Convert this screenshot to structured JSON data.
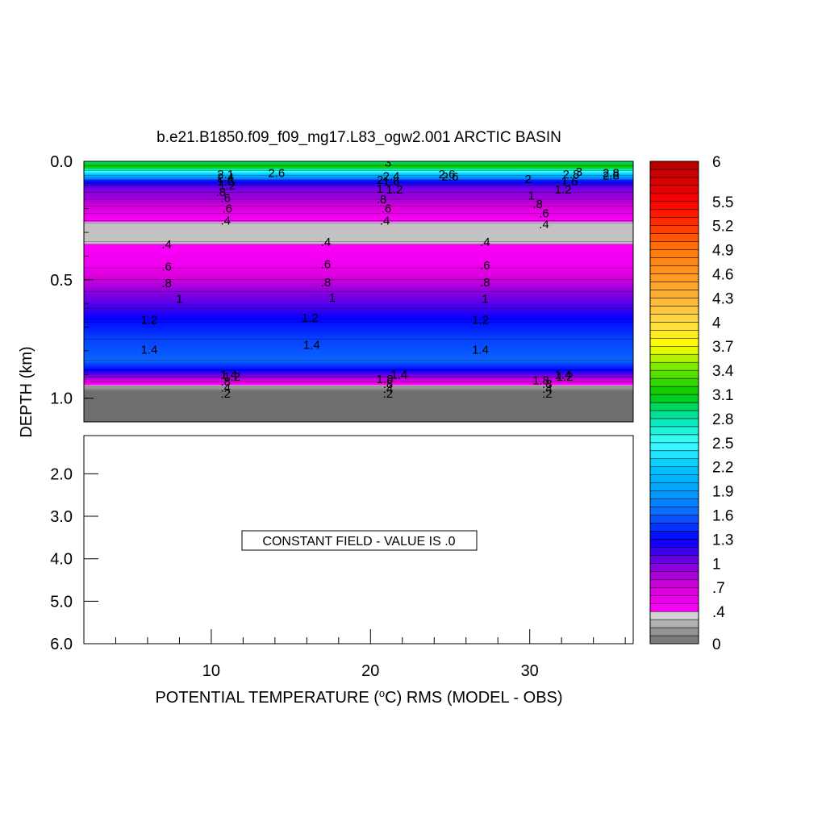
{
  "chart_data": {
    "type": "heatmap",
    "title": "b.e21.B1850.f09_f09_mg17.L83_ogw2.001 ARCTIC BASIN",
    "xlabel": "POTENTIAL TEMPERATURE (",
    "xlabel_deg": "o",
    "xlabel_tail": "C) RMS (MODEL - OBS)",
    "ylabel": "DEPTH (km)",
    "x_range": [
      2,
      36.5
    ],
    "x_ticks": [
      "10",
      "20",
      "30"
    ],
    "x_tick_values": [
      10,
      20,
      30
    ],
    "upper_panel": {
      "depth_range": [
        0,
        1.1
      ],
      "y_ticks": [
        "0.0",
        "0.5",
        "1.0"
      ],
      "y_tick_values": [
        0,
        0.5,
        1.0
      ],
      "depth_profile": [
        {
          "depth": 0.0,
          "value": 2.9
        },
        {
          "depth": 0.02,
          "value": 3.2
        },
        {
          "depth": 0.04,
          "value": 2.5
        },
        {
          "depth": 0.06,
          "value": 2.0
        },
        {
          "depth": 0.08,
          "value": 1.4
        },
        {
          "depth": 0.1,
          "value": 1.1
        },
        {
          "depth": 0.13,
          "value": 0.95
        },
        {
          "depth": 0.16,
          "value": 0.85
        },
        {
          "depth": 0.19,
          "value": 0.7
        },
        {
          "depth": 0.22,
          "value": 0.55
        },
        {
          "depth": 0.25,
          "value": 0.42
        },
        {
          "depth": 0.26,
          "value": 0.3
        },
        {
          "depth": 0.34,
          "value": 0.3
        },
        {
          "depth": 0.35,
          "value": 0.42
        },
        {
          "depth": 0.45,
          "value": 0.55
        },
        {
          "depth": 0.5,
          "value": 0.75
        },
        {
          "depth": 0.55,
          "value": 0.95
        },
        {
          "depth": 0.62,
          "value": 1.15
        },
        {
          "depth": 0.68,
          "value": 1.35
        },
        {
          "depth": 0.75,
          "value": 1.5
        },
        {
          "depth": 0.84,
          "value": 1.6
        },
        {
          "depth": 0.88,
          "value": 1.3
        },
        {
          "depth": 0.91,
          "value": 0.9
        },
        {
          "depth": 0.93,
          "value": 0.6
        },
        {
          "depth": 0.95,
          "value": 0.2
        },
        {
          "depth": 0.97,
          "value": 0.0
        },
        {
          "depth": 1.1,
          "value": 0.0
        }
      ],
      "contour_labels": [
        {
          "text": "2.6",
          "x": 14.1,
          "depth": 0.05
        },
        {
          "text": "3",
          "x": 21.1,
          "depth": 0.005
        },
        {
          "text": "2.6",
          "x": 24.8,
          "depth": 0.055
        },
        {
          "text": "2.6",
          "x": 25.0,
          "depth": 0.065
        },
        {
          "text": "2.8",
          "x": 35.1,
          "depth": 0.05
        },
        {
          "text": "2.8",
          "x": 35.1,
          "depth": 0.06
        },
        {
          "text": "2",
          "x": 29.9,
          "depth": 0.075
        },
        {
          "text": "3",
          "x": 33.1,
          "depth": 0.045
        },
        {
          "text": "2.8",
          "x": 32.6,
          "depth": 0.055
        },
        {
          "text": "1.6",
          "x": 32.5,
          "depth": 0.085
        },
        {
          "text": "2.1",
          "x": 10.9,
          "depth": 0.055
        },
        {
          "text": "2.4",
          "x": 10.9,
          "depth": 0.068
        },
        {
          "text": "1.6",
          "x": 10.9,
          "depth": 0.085
        },
        {
          "text": "1.2",
          "x": 11.0,
          "depth": 0.103
        },
        {
          "text": "2",
          "x": 20.6,
          "depth": 0.078
        },
        {
          "text": "2.4",
          "x": 21.3,
          "depth": 0.063
        },
        {
          "text": "1.6",
          "x": 21.3,
          "depth": 0.085
        },
        {
          "text": "1.2",
          "x": 21.5,
          "depth": 0.12
        },
        {
          "text": "1.2",
          "x": 32.1,
          "depth": 0.12
        },
        {
          "text": ".8",
          "x": 10.6,
          "depth": 0.13
        },
        {
          "text": ".6",
          "x": 10.9,
          "depth": 0.155
        },
        {
          "text": ".6",
          "x": 11.0,
          "depth": 0.2
        },
        {
          "text": ".4",
          "x": 10.9,
          "depth": 0.25
        },
        {
          "text": "1",
          "x": 20.6,
          "depth": 0.115
        },
        {
          "text": ".8",
          "x": 20.7,
          "depth": 0.16
        },
        {
          "text": ".6",
          "x": 21.0,
          "depth": 0.2
        },
        {
          "text": ".4",
          "x": 20.9,
          "depth": 0.25
        },
        {
          "text": "1",
          "x": 30.1,
          "depth": 0.145
        },
        {
          "text": ".8",
          "x": 30.5,
          "depth": 0.18
        },
        {
          "text": ".6",
          "x": 30.9,
          "depth": 0.22
        },
        {
          "text": ".4",
          "x": 30.9,
          "depth": 0.265
        },
        {
          "text": ".4",
          "x": 7.2,
          "depth": 0.35
        },
        {
          "text": ".4",
          "x": 17.2,
          "depth": 0.34
        },
        {
          "text": ".4",
          "x": 27.2,
          "depth": 0.34
        },
        {
          "text": ".6",
          "x": 7.2,
          "depth": 0.445
        },
        {
          "text": ".6",
          "x": 17.2,
          "depth": 0.435
        },
        {
          "text": ".6",
          "x": 27.2,
          "depth": 0.44
        },
        {
          "text": ".8",
          "x": 7.2,
          "depth": 0.515
        },
        {
          "text": ".8",
          "x": 17.2,
          "depth": 0.51
        },
        {
          "text": ".8",
          "x": 27.2,
          "depth": 0.51
        },
        {
          "text": "1",
          "x": 8.0,
          "depth": 0.58
        },
        {
          "text": "1",
          "x": 17.6,
          "depth": 0.575
        },
        {
          "text": "1",
          "x": 27.2,
          "depth": 0.58
        },
        {
          "text": "1.2",
          "x": 6.1,
          "depth": 0.67
        },
        {
          "text": "1.2",
          "x": 16.2,
          "depth": 0.66
        },
        {
          "text": "1.2",
          "x": 26.9,
          "depth": 0.67
        },
        {
          "text": "1.4",
          "x": 6.1,
          "depth": 0.795
        },
        {
          "text": "1.4",
          "x": 16.3,
          "depth": 0.775
        },
        {
          "text": "1.4",
          "x": 26.9,
          "depth": 0.795
        },
        {
          "text": "1.4",
          "x": 11.1,
          "depth": 0.9
        },
        {
          "text": "1.2",
          "x": 11.3,
          "depth": 0.91
        },
        {
          "text": ".8",
          "x": 10.9,
          "depth": 0.93
        },
        {
          "text": ".4",
          "x": 10.9,
          "depth": 0.955
        },
        {
          "text": ".2",
          "x": 10.9,
          "depth": 0.98
        },
        {
          "text": "1.4",
          "x": 21.8,
          "depth": 0.9
        },
        {
          "text": "1.8",
          "x": 20.9,
          "depth": 0.92
        },
        {
          "text": ".8",
          "x": 21.1,
          "depth": 0.94
        },
        {
          "text": ".4",
          "x": 21.1,
          "depth": 0.96
        },
        {
          "text": ".2",
          "x": 21.1,
          "depth": 0.98
        },
        {
          "text": "1.4",
          "x": 32.1,
          "depth": 0.9
        },
        {
          "text": "1.8",
          "x": 30.7,
          "depth": 0.925
        },
        {
          "text": "1.2",
          "x": 32.2,
          "depth": 0.91
        },
        {
          "text": ".8",
          "x": 31.1,
          "depth": 0.94
        },
        {
          "text": ".4",
          "x": 31.1,
          "depth": 0.96
        },
        {
          "text": ".2",
          "x": 31.1,
          "depth": 0.98
        }
      ]
    },
    "lower_panel": {
      "depth_range": [
        1.1,
        6.0
      ],
      "y_ticks": [
        "2.0",
        "3.0",
        "4.0",
        "5.0",
        "6.0"
      ],
      "y_tick_values": [
        2,
        3,
        4,
        5,
        6
      ],
      "message": "CONSTANT FIELD - VALUE IS .0"
    },
    "colorbar": {
      "range": [
        0,
        6
      ],
      "step": 0.1,
      "labels": [
        "6",
        "5.5",
        "5.2",
        "4.9",
        "4.6",
        "4.3",
        "4",
        "3.7",
        "3.4",
        "3.1",
        "2.8",
        "2.5",
        "2.2",
        "1.9",
        "1.6",
        "1.3",
        "1",
        ".7",
        ".4",
        "0"
      ],
      "label_values": [
        6,
        5.5,
        5.2,
        4.9,
        4.6,
        4.3,
        4.0,
        3.7,
        3.4,
        3.1,
        2.8,
        2.5,
        2.2,
        1.9,
        1.6,
        1.3,
        1.0,
        0.7,
        0.4,
        0
      ],
      "color_stops": [
        {
          "v": 0.0,
          "c": "#6e6e6e"
        },
        {
          "v": 0.2,
          "c": "#a0a0a0"
        },
        {
          "v": 0.35,
          "c": "#d3d3d3"
        },
        {
          "v": 0.4,
          "c": "#ff00ff"
        },
        {
          "v": 0.7,
          "c": "#d800d8"
        },
        {
          "v": 1.0,
          "c": "#7a00e0"
        },
        {
          "v": 1.3,
          "c": "#0000ff"
        },
        {
          "v": 1.6,
          "c": "#0a64ff"
        },
        {
          "v": 1.9,
          "c": "#00a0ff"
        },
        {
          "v": 2.2,
          "c": "#00c8ff"
        },
        {
          "v": 2.5,
          "c": "#40ffff"
        },
        {
          "v": 2.8,
          "c": "#00e6b4"
        },
        {
          "v": 3.1,
          "c": "#00c800"
        },
        {
          "v": 3.4,
          "c": "#66e600"
        },
        {
          "v": 3.7,
          "c": "#ffff00"
        },
        {
          "v": 4.0,
          "c": "#ffdc46"
        },
        {
          "v": 4.3,
          "c": "#ffb432"
        },
        {
          "v": 4.6,
          "c": "#ff961e"
        },
        {
          "v": 4.9,
          "c": "#ff780a"
        },
        {
          "v": 5.2,
          "c": "#ff3200"
        },
        {
          "v": 5.5,
          "c": "#ff0000"
        },
        {
          "v": 6.0,
          "c": "#b40000"
        }
      ]
    }
  }
}
